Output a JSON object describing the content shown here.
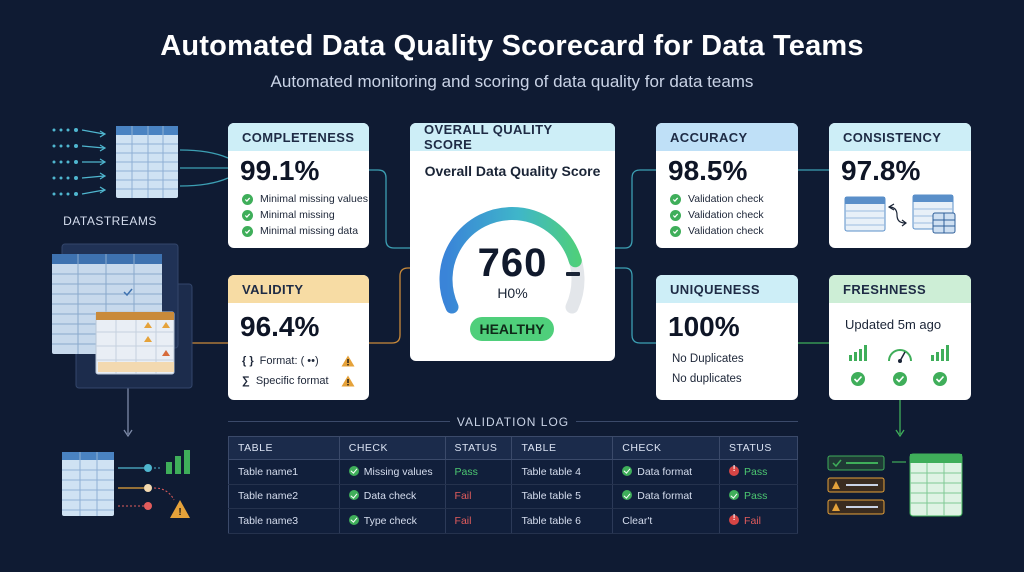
{
  "header": {
    "title": "Automated Data Quality Scorecard for Data Teams",
    "subtitle": "Automated monitoring and scoring of data quality for data teams"
  },
  "datastreams": {
    "label": "DATASTREAMS"
  },
  "completeness": {
    "title": "COMPLETENESS",
    "value": "99.1%",
    "checks": [
      "Minimal missing values",
      "Minimal missing",
      "Minimal missing data"
    ]
  },
  "validity": {
    "title": "VALIDITY",
    "value": "96.4%",
    "rows": [
      "Format: ( ••)",
      "Specific format"
    ],
    "row_symbols": [
      "{ }",
      "∑"
    ]
  },
  "overall": {
    "title": "OVERALL QUALITY SCORE",
    "label": "Overall Data Quality Score",
    "score": "760",
    "sub": "H0%",
    "status": "HEALTHY",
    "gauge_fill": 0.82
  },
  "accuracy": {
    "title": "ACCURACY",
    "value": "98.5%",
    "checks": [
      "Validation check",
      "Validation check",
      "Validation check"
    ]
  },
  "consistency": {
    "title": "CONSISTENCY",
    "value": "97.8%"
  },
  "uniqueness": {
    "title": "UNIQUENESS",
    "value": "100%",
    "rows": [
      "No Duplicates",
      "No duplicates"
    ]
  },
  "freshness": {
    "title": "FRESHNESS",
    "updated": "Updated 5m ago"
  },
  "log": {
    "title": "VALIDATION LOG",
    "headers": [
      "TABLE",
      "CHECK",
      "STATUS",
      "TABLE",
      "CHECK",
      "STATUS"
    ],
    "rows": [
      [
        "Table name1",
        "Missing values",
        "Pass",
        "Table table 4",
        "Data format",
        "Pass"
      ],
      [
        "Table name2",
        "Data check",
        "Fail",
        "Table table 5",
        "Data format",
        "Pass"
      ],
      [
        "Table name3",
        "Type check",
        "Fail",
        "Table table 6",
        "Clear't",
        "Fail"
      ]
    ]
  },
  "colors": {
    "background": "#0f1b33",
    "completeness_head": "#cdeef7",
    "validity_head": "#f7dca4",
    "overall_head": "#cdeef7",
    "accuracy_head": "#bfe0f7",
    "consistency_head": "#cdeef7",
    "uniqueness_head": "#cdeef7",
    "freshness_head": "#cdeed6",
    "pass": "#4cc771",
    "fail": "#e25c5c",
    "healthy": "#4fcf7b"
  }
}
